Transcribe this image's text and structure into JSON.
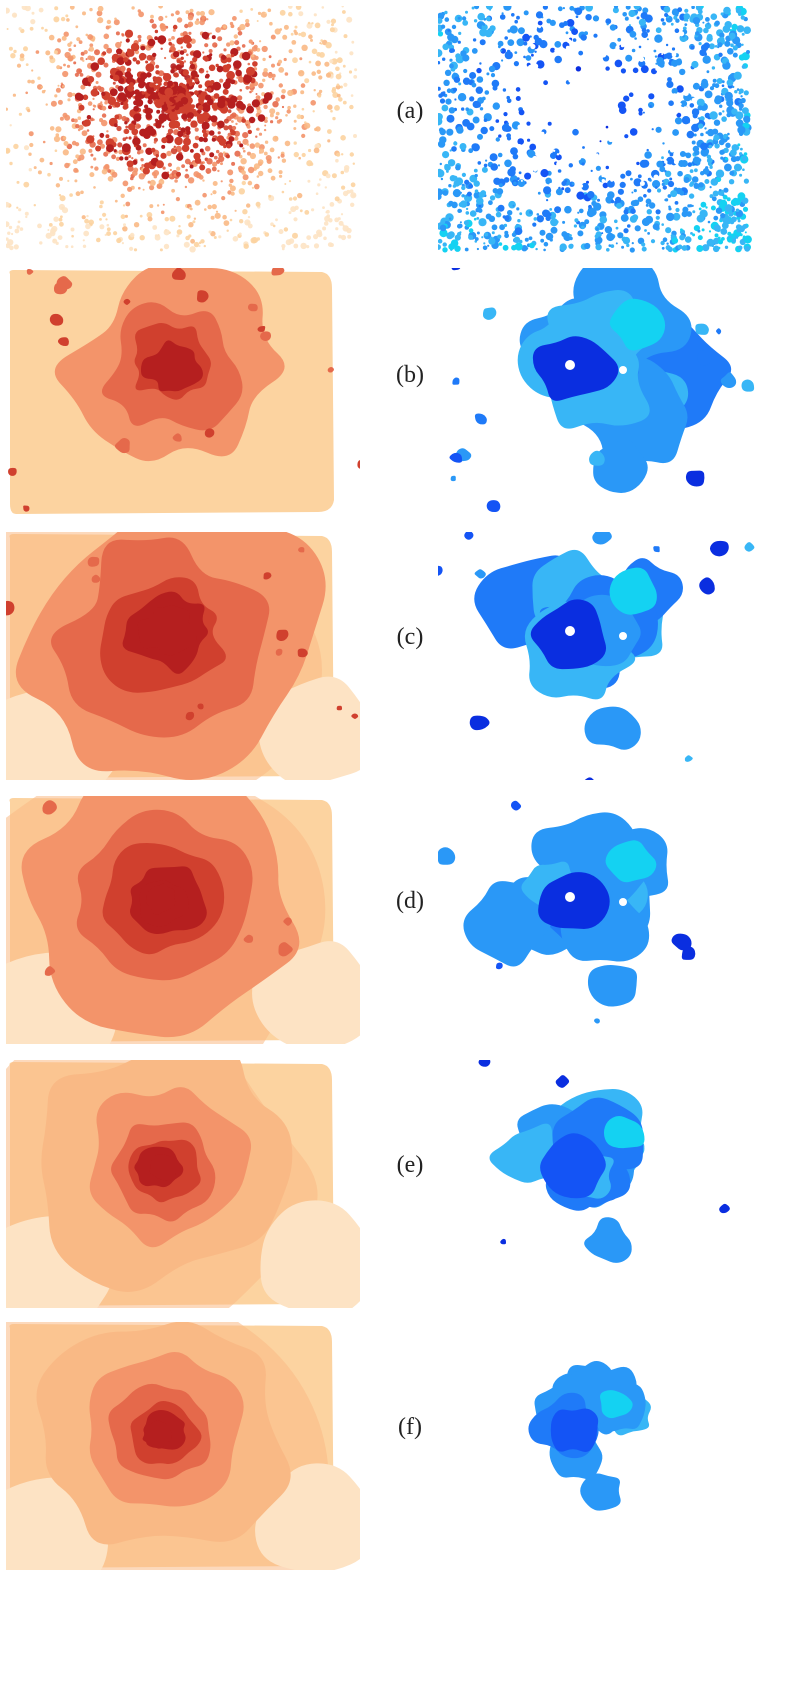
{
  "panels": [
    {
      "label": "(a)",
      "style": "points"
    },
    {
      "label": "(b)",
      "style": "clusters"
    },
    {
      "label": "(c)",
      "style": "clusters"
    },
    {
      "label": "(d)",
      "style": "clusters"
    },
    {
      "label": "(e)",
      "style": "clusters"
    },
    {
      "label": "(f)",
      "style": "clusters"
    }
  ],
  "colors": {
    "warm_ramp": [
      "#fde3c4",
      "#fcd3a0",
      "#f9b985",
      "#f3946a",
      "#e5694b",
      "#d0402e",
      "#b51f1f"
    ],
    "cool_ramp": [
      "#0a2ee0",
      "#1454f5",
      "#1f7af8",
      "#2a98f7",
      "#38b6f6",
      "#14d2f2"
    ]
  }
}
